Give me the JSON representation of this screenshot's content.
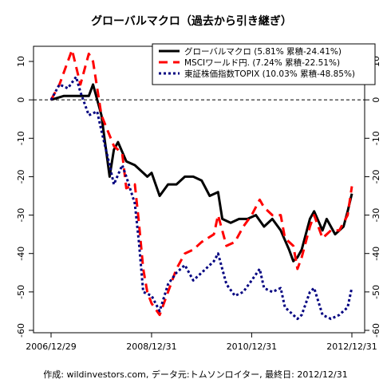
{
  "chart_data": {
    "type": "line",
    "title": "グローバルマクロ（過去から引き継ぎ）",
    "xlabel": "",
    "ylabel": "",
    "caption": "作成: wildinvestors.com, データ元:トムソンロイター, 最終日: 2012/12/31",
    "xlim": [
      "2006-12-29",
      "2012-12-31"
    ],
    "ylim": [
      -60,
      15
    ],
    "y_ticks": [
      10,
      0,
      -10,
      -20,
      -30,
      -40,
      -50,
      -60
    ],
    "y_tick_labels_left": [
      "10",
      "0",
      "-10",
      "-20",
      "-30",
      "-40",
      "-50",
      "-60"
    ],
    "y_tick_labels_right": [
      "10",
      "0",
      "-10",
      "-20",
      "-30",
      "-40",
      "-50",
      "-60"
    ],
    "x_ticks": [
      "2006-12-29",
      "2008-12-31",
      "2010-12-31",
      "2012-12-31"
    ],
    "x_tick_labels": [
      "2006/12/29",
      "2008/12/31",
      "2010/12/31",
      "2012/12/31"
    ],
    "reference_line": 0,
    "grid": false,
    "legend_position": "top-right",
    "series": [
      {
        "name": "グローバルマクロ (5.81% 累積-24.41%)",
        "color": "#000000",
        "style": "solid",
        "points": [
          [
            "2006-12-29",
            0
          ],
          [
            "2007-03-31",
            1
          ],
          [
            "2007-06-30",
            1
          ],
          [
            "2007-09-30",
            1
          ],
          [
            "2007-10-31",
            4
          ],
          [
            "2007-12-31",
            -4
          ],
          [
            "2008-02-29",
            -20
          ],
          [
            "2008-03-31",
            -13
          ],
          [
            "2008-04-30",
            -11
          ],
          [
            "2008-06-30",
            -16
          ],
          [
            "2008-08-31",
            -17
          ],
          [
            "2008-10-31",
            -19
          ],
          [
            "2008-11-30",
            -20
          ],
          [
            "2008-12-31",
            -19
          ],
          [
            "2009-02-28",
            -25
          ],
          [
            "2009-04-30",
            -22
          ],
          [
            "2009-06-30",
            -22
          ],
          [
            "2009-08-31",
            -20
          ],
          [
            "2009-10-31",
            -20
          ],
          [
            "2009-12-31",
            -21
          ],
          [
            "2010-02-28",
            -25
          ],
          [
            "2010-04-30",
            -24
          ],
          [
            "2010-05-31",
            -31
          ],
          [
            "2010-07-31",
            -32
          ],
          [
            "2010-09-30",
            -31
          ],
          [
            "2010-11-30",
            -31
          ],
          [
            "2011-01-31",
            -30
          ],
          [
            "2011-03-31",
            -33
          ],
          [
            "2011-05-31",
            -31
          ],
          [
            "2011-07-31",
            -34
          ],
          [
            "2011-09-30",
            -39
          ],
          [
            "2011-10-31",
            -42
          ],
          [
            "2011-11-30",
            -41
          ],
          [
            "2011-12-31",
            -39
          ],
          [
            "2012-02-29",
            -31
          ],
          [
            "2012-03-31",
            -29
          ],
          [
            "2012-05-31",
            -34
          ],
          [
            "2012-06-30",
            -31
          ],
          [
            "2012-08-31",
            -35
          ],
          [
            "2012-10-31",
            -33
          ],
          [
            "2012-11-30",
            -29
          ],
          [
            "2012-12-31",
            -24.41
          ]
        ]
      },
      {
        "name": "MSCIワールド円. (7.24% 累積-22.51%)",
        "color": "#ff0000",
        "style": "dashed",
        "points": [
          [
            "2006-12-29",
            0
          ],
          [
            "2007-02-28",
            4
          ],
          [
            "2007-04-30",
            10
          ],
          [
            "2007-05-31",
            13
          ],
          [
            "2007-07-31",
            4
          ],
          [
            "2007-09-30",
            12
          ],
          [
            "2007-10-31",
            10
          ],
          [
            "2007-12-31",
            -4
          ],
          [
            "2008-03-31",
            -12
          ],
          [
            "2008-05-31",
            -14
          ],
          [
            "2008-06-30",
            -23
          ],
          [
            "2008-08-31",
            -22
          ],
          [
            "2008-09-30",
            -32
          ],
          [
            "2008-10-31",
            -44
          ],
          [
            "2008-11-30",
            -50
          ],
          [
            "2008-12-31",
            -53
          ],
          [
            "2009-02-28",
            -56
          ],
          [
            "2009-04-30",
            -50
          ],
          [
            "2009-06-30",
            -44
          ],
          [
            "2009-08-31",
            -40
          ],
          [
            "2009-10-31",
            -39
          ],
          [
            "2009-12-31",
            -37
          ],
          [
            "2010-03-31",
            -35
          ],
          [
            "2010-04-30",
            -30
          ],
          [
            "2010-06-30",
            -38
          ],
          [
            "2010-08-31",
            -37
          ],
          [
            "2010-10-31",
            -33
          ],
          [
            "2010-12-31",
            -30
          ],
          [
            "2011-02-28",
            -26
          ],
          [
            "2011-03-31",
            -28
          ],
          [
            "2011-05-31",
            -30
          ],
          [
            "2011-07-31",
            -30
          ],
          [
            "2011-08-31",
            -36
          ],
          [
            "2011-10-31",
            -38
          ],
          [
            "2011-11-30",
            -44
          ],
          [
            "2011-12-31",
            -41
          ],
          [
            "2012-02-29",
            -33
          ],
          [
            "2012-03-31",
            -30
          ],
          [
            "2012-05-31",
            -36
          ],
          [
            "2012-07-31",
            -34
          ],
          [
            "2012-09-30",
            -34
          ],
          [
            "2012-11-30",
            -30
          ],
          [
            "2012-12-31",
            -22.51
          ]
        ]
      },
      {
        "name": "東証株価指数TOPIX (10.03% 累積-48.85%)",
        "color": "#000080",
        "style": "dotted",
        "points": [
          [
            "2006-12-29",
            0
          ],
          [
            "2007-02-28",
            4
          ],
          [
            "2007-04-30",
            3
          ],
          [
            "2007-06-30",
            6
          ],
          [
            "2007-07-31",
            2
          ],
          [
            "2007-09-30",
            -4
          ],
          [
            "2007-11-30",
            -3
          ],
          [
            "2007-12-31",
            -8
          ],
          [
            "2008-02-29",
            -17
          ],
          [
            "2008-03-31",
            -22
          ],
          [
            "2008-05-31",
            -17
          ],
          [
            "2008-06-30",
            -20
          ],
          [
            "2008-08-31",
            -27
          ],
          [
            "2008-09-30",
            -37
          ],
          [
            "2008-10-31",
            -50
          ],
          [
            "2008-12-31",
            -51
          ],
          [
            "2009-02-28",
            -55
          ],
          [
            "2009-04-30",
            -48
          ],
          [
            "2009-06-30",
            -45
          ],
          [
            "2009-08-31",
            -43
          ],
          [
            "2009-10-31",
            -47
          ],
          [
            "2009-12-31",
            -45
          ],
          [
            "2010-03-31",
            -42
          ],
          [
            "2010-04-30",
            -40
          ],
          [
            "2010-06-30",
            -48
          ],
          [
            "2010-08-31",
            -51
          ],
          [
            "2010-10-31",
            -50
          ],
          [
            "2010-12-31",
            -47
          ],
          [
            "2011-02-28",
            -44
          ],
          [
            "2011-03-31",
            -49
          ],
          [
            "2011-05-31",
            -50
          ],
          [
            "2011-07-31",
            -49
          ],
          [
            "2011-08-31",
            -54
          ],
          [
            "2011-10-31",
            -56
          ],
          [
            "2011-11-30",
            -57
          ],
          [
            "2011-12-31",
            -56
          ],
          [
            "2012-02-29",
            -50
          ],
          [
            "2012-03-31",
            -49
          ],
          [
            "2012-05-31",
            -56
          ],
          [
            "2012-07-31",
            -57
          ],
          [
            "2012-09-30",
            -56
          ],
          [
            "2012-11-30",
            -54
          ],
          [
            "2012-12-31",
            -48.85
          ]
        ]
      }
    ]
  }
}
